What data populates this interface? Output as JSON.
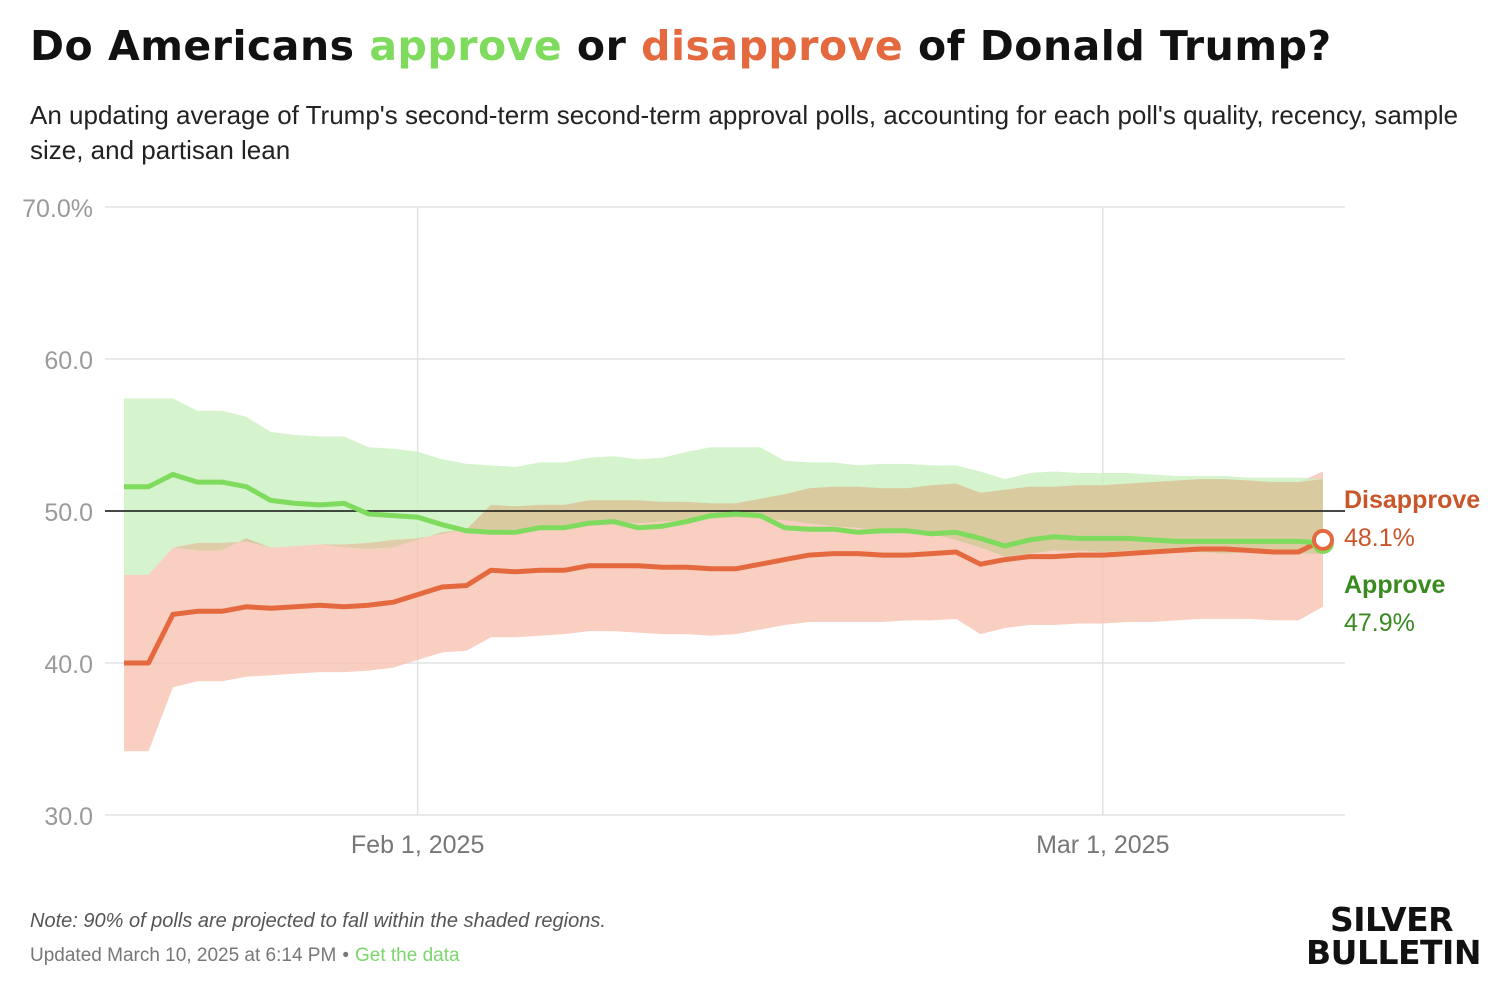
{
  "header": {
    "title_part1": "Do Americans ",
    "title_approve": "approve",
    "title_part2": " or ",
    "title_disapprove": "disapprove",
    "title_part3": " of Donald Trump?",
    "subtitle": "An updating average of Trump's second-term second-term approval polls, accounting for each poll's quality, recency, sample size, and partisan lean"
  },
  "colors": {
    "approve": "#7fdb5e",
    "approve_band": "#cbf0c0",
    "approve_label": "#3a8a1f",
    "disapprove": "#e5693e",
    "disapprove_band": "#f6c3b1",
    "disapprove_label": "#c9552a",
    "grid": "#e2e2e2",
    "axis_text": "#9a9a9a"
  },
  "chart_data": {
    "type": "line",
    "title": "Do Americans approve or disapprove of Donald Trump?",
    "x_start": "2025-01-20",
    "x_end": "2025-03-10",
    "xticks": [
      {
        "date": "2025-02-01",
        "label": "Feb 1, 2025"
      },
      {
        "date": "2025-03-01",
        "label": "Mar 1, 2025"
      }
    ],
    "ylim": [
      30,
      70
    ],
    "yticks": [
      {
        "value": 30,
        "label": "30.0"
      },
      {
        "value": 40,
        "label": "40.0"
      },
      {
        "value": 50,
        "label": "50.0"
      },
      {
        "value": 60,
        "label": "60.0"
      },
      {
        "value": 70,
        "label": "70.0%"
      }
    ],
    "reference_line": 50,
    "grid": true,
    "dates": [
      "2025-01-20",
      "2025-01-21",
      "2025-01-22",
      "2025-01-23",
      "2025-01-24",
      "2025-01-25",
      "2025-01-26",
      "2025-01-27",
      "2025-01-28",
      "2025-01-29",
      "2025-01-30",
      "2025-01-31",
      "2025-02-01",
      "2025-02-02",
      "2025-02-03",
      "2025-02-04",
      "2025-02-05",
      "2025-02-06",
      "2025-02-07",
      "2025-02-08",
      "2025-02-09",
      "2025-02-10",
      "2025-02-11",
      "2025-02-12",
      "2025-02-13",
      "2025-02-14",
      "2025-02-15",
      "2025-02-16",
      "2025-02-17",
      "2025-02-18",
      "2025-02-19",
      "2025-02-20",
      "2025-02-21",
      "2025-02-22",
      "2025-02-23",
      "2025-02-24",
      "2025-02-25",
      "2025-02-26",
      "2025-02-27",
      "2025-02-28",
      "2025-03-01",
      "2025-03-02",
      "2025-03-03",
      "2025-03-04",
      "2025-03-05",
      "2025-03-06",
      "2025-03-07",
      "2025-03-08",
      "2025-03-09",
      "2025-03-10"
    ],
    "series": [
      {
        "name": "Approve",
        "final_label": "47.9%",
        "values": [
          51.6,
          51.6,
          52.4,
          51.9,
          51.9,
          51.6,
          50.7,
          50.5,
          50.4,
          50.5,
          49.8,
          49.7,
          49.6,
          49.1,
          48.7,
          48.6,
          48.6,
          48.9,
          48.9,
          49.2,
          49.3,
          48.9,
          49.0,
          49.3,
          49.7,
          49.8,
          49.7,
          48.9,
          48.8,
          48.8,
          48.6,
          48.7,
          48.7,
          48.5,
          48.6,
          48.2,
          47.7,
          48.1,
          48.3,
          48.2,
          48.2,
          48.2,
          48.1,
          48.0,
          48.0,
          48.0,
          48.0,
          48.0,
          48.0,
          47.9
        ],
        "lower": [
          45.8,
          45.8,
          47.6,
          47.9,
          47.9,
          48.0,
          47.6,
          47.7,
          47.8,
          47.8,
          47.9,
          48.1,
          48.2,
          48.5,
          48.8,
          48.7,
          48.8,
          48.9,
          49.0,
          49.2,
          49.3,
          49.2,
          49.3,
          49.4,
          49.5,
          49.6,
          49.5,
          49.4,
          49.2,
          49.0,
          48.9,
          48.7,
          48.6,
          48.5,
          48.1,
          47.6,
          47.0,
          47.2,
          47.4,
          47.4,
          47.3,
          47.4,
          47.4,
          47.3,
          47.3,
          47.2,
          47.3,
          47.2,
          47.2,
          47.2
        ],
        "upper": [
          57.4,
          57.4,
          57.4,
          56.6,
          56.6,
          56.2,
          55.2,
          55.0,
          54.9,
          54.9,
          54.2,
          54.1,
          53.9,
          53.4,
          53.1,
          53.0,
          52.9,
          53.2,
          53.2,
          53.5,
          53.6,
          53.4,
          53.5,
          53.9,
          54.2,
          54.2,
          54.2,
          53.3,
          53.2,
          53.2,
          53.0,
          53.1,
          53.1,
          53.0,
          53.0,
          52.6,
          52.1,
          52.5,
          52.6,
          52.5,
          52.5,
          52.5,
          52.4,
          52.3,
          52.3,
          52.3,
          52.2,
          52.2,
          52.2,
          52.1
        ]
      },
      {
        "name": "Disapprove",
        "final_label": "48.1%",
        "values": [
          40.0,
          40.0,
          43.2,
          43.4,
          43.4,
          43.7,
          43.6,
          43.7,
          43.8,
          43.7,
          43.8,
          44.0,
          44.5,
          45.0,
          45.1,
          46.1,
          46.0,
          46.1,
          46.1,
          46.4,
          46.4,
          46.4,
          46.3,
          46.3,
          46.2,
          46.2,
          46.5,
          46.8,
          47.1,
          47.2,
          47.2,
          47.1,
          47.1,
          47.2,
          47.3,
          46.5,
          46.8,
          47.0,
          47.0,
          47.1,
          47.1,
          47.2,
          47.3,
          47.4,
          47.5,
          47.5,
          47.4,
          47.3,
          47.3,
          48.1
        ],
        "lower": [
          34.2,
          34.2,
          38.4,
          38.8,
          38.8,
          39.1,
          39.2,
          39.3,
          39.4,
          39.4,
          39.5,
          39.7,
          40.2,
          40.7,
          40.8,
          41.7,
          41.7,
          41.8,
          41.9,
          42.1,
          42.1,
          42.0,
          41.9,
          41.9,
          41.8,
          41.9,
          42.2,
          42.5,
          42.7,
          42.7,
          42.7,
          42.7,
          42.8,
          42.8,
          42.9,
          41.9,
          42.3,
          42.5,
          42.5,
          42.6,
          42.6,
          42.7,
          42.7,
          42.8,
          42.9,
          42.9,
          42.9,
          42.8,
          42.8,
          43.7
        ],
        "upper": [
          45.8,
          45.8,
          47.6,
          47.4,
          47.4,
          48.2,
          47.6,
          47.7,
          47.8,
          47.6,
          47.5,
          47.6,
          48.1,
          48.6,
          48.8,
          50.4,
          50.3,
          50.4,
          50.4,
          50.7,
          50.7,
          50.7,
          50.6,
          50.6,
          50.5,
          50.5,
          50.8,
          51.1,
          51.5,
          51.6,
          51.6,
          51.5,
          51.5,
          51.7,
          51.8,
          51.2,
          51.4,
          51.6,
          51.6,
          51.7,
          51.7,
          51.8,
          51.9,
          52.0,
          52.1,
          52.1,
          52.0,
          51.9,
          51.9,
          52.6
        ]
      }
    ]
  },
  "footer": {
    "note": "Note: 90% of polls are projected to fall within the shaded regions.",
    "updated": "Updated March 10, 2025 at 6:14 PM",
    "separator": "•",
    "data_link": "Get the data"
  },
  "logo": {
    "line1": "SILVER",
    "line2": "BULLETIN"
  }
}
